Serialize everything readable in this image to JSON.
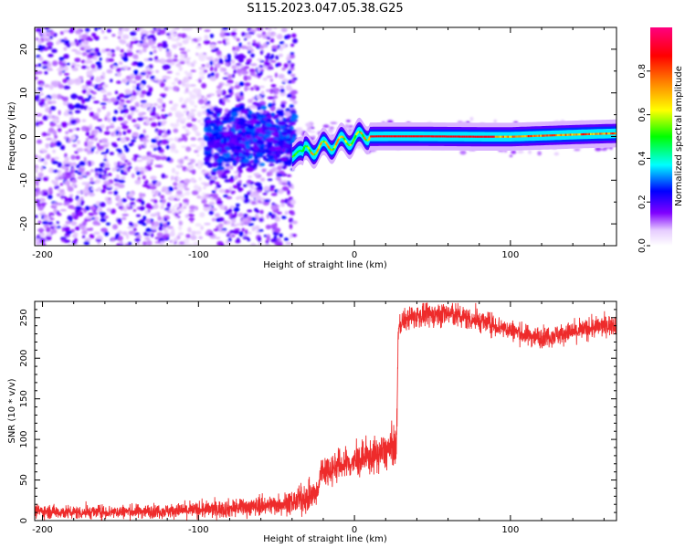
{
  "figure": {
    "title": "S115.2023.047.05.38.G25"
  },
  "chart_data": [
    {
      "type": "heatmap",
      "id": "spectrogram",
      "xlabel": "Height of straight line (km)",
      "ylabel": "Frequency (Hz)",
      "xlim": [
        -205,
        168
      ],
      "ylim": [
        -25,
        25
      ],
      "x_ticks": [
        -200,
        -100,
        0,
        100
      ],
      "y_ticks": [
        -20,
        -10,
        0,
        10,
        20
      ],
      "colorbar": {
        "label": "Normalized spectral amplitude",
        "range": [
          0,
          1
        ],
        "ticks": [
          "0.0",
          "0.2",
          "0.4",
          "0.6",
          "0.8"
        ],
        "tick_values": [
          0.0,
          0.2,
          0.4,
          0.6,
          0.8
        ],
        "colormap": "rainbow (white-purple-blue-cyan-green-yellow-orange-red-magenta)"
      },
      "grid": false,
      "description_regions": [
        {
          "x_range": [
            -205,
            -40
          ],
          "pattern": "scattered noise",
          "amplitude": [
            0.05,
            0.3
          ]
        },
        {
          "x_range": [
            -95,
            -40
          ],
          "pattern": "noise concentrated near 0 Hz",
          "amplitude": [
            0.2,
            0.4
          ]
        },
        {
          "x_range": [
            -40,
            10
          ],
          "pattern": "wavy signal line",
          "freq_range": [
            -5,
            3
          ]
        },
        {
          "x_range": [
            10,
            168
          ],
          "pattern": "steady line at ~0 Hz",
          "peak_amplitude": 0.9
        }
      ]
    },
    {
      "type": "line",
      "id": "snr",
      "xlabel": "Height of straight line (km)",
      "ylabel": "SNR (10 * v/v)",
      "xlim": [
        -205,
        168
      ],
      "ylim": [
        0,
        270
      ],
      "x_ticks": [
        -200,
        -100,
        0,
        100
      ],
      "y_ticks": [
        0,
        50,
        100,
        150,
        200,
        250
      ],
      "grid": false,
      "series": [
        {
          "color": "#ee2b2b",
          "x": [
            -205,
            -180,
            -150,
            -120,
            -100,
            -80,
            -60,
            -40,
            -30,
            -23,
            -22,
            -10,
            0,
            10,
            20,
            27,
            28,
            30,
            40,
            60,
            80,
            100,
            110,
            120,
            140,
            160,
            168
          ],
          "y": [
            12,
            10,
            11,
            12,
            13,
            15,
            18,
            22,
            28,
            35,
            60,
            68,
            72,
            78,
            85,
            92,
            230,
            245,
            252,
            255,
            246,
            235,
            228,
            226,
            232,
            240,
            242
          ],
          "noise": [
            6,
            6,
            6,
            6,
            7,
            8,
            8,
            10,
            12,
            14,
            14,
            14,
            14,
            15,
            16,
            18,
            10,
            10,
            10,
            11,
            10,
            9,
            9,
            9,
            9,
            9,
            9
          ]
        }
      ]
    }
  ]
}
